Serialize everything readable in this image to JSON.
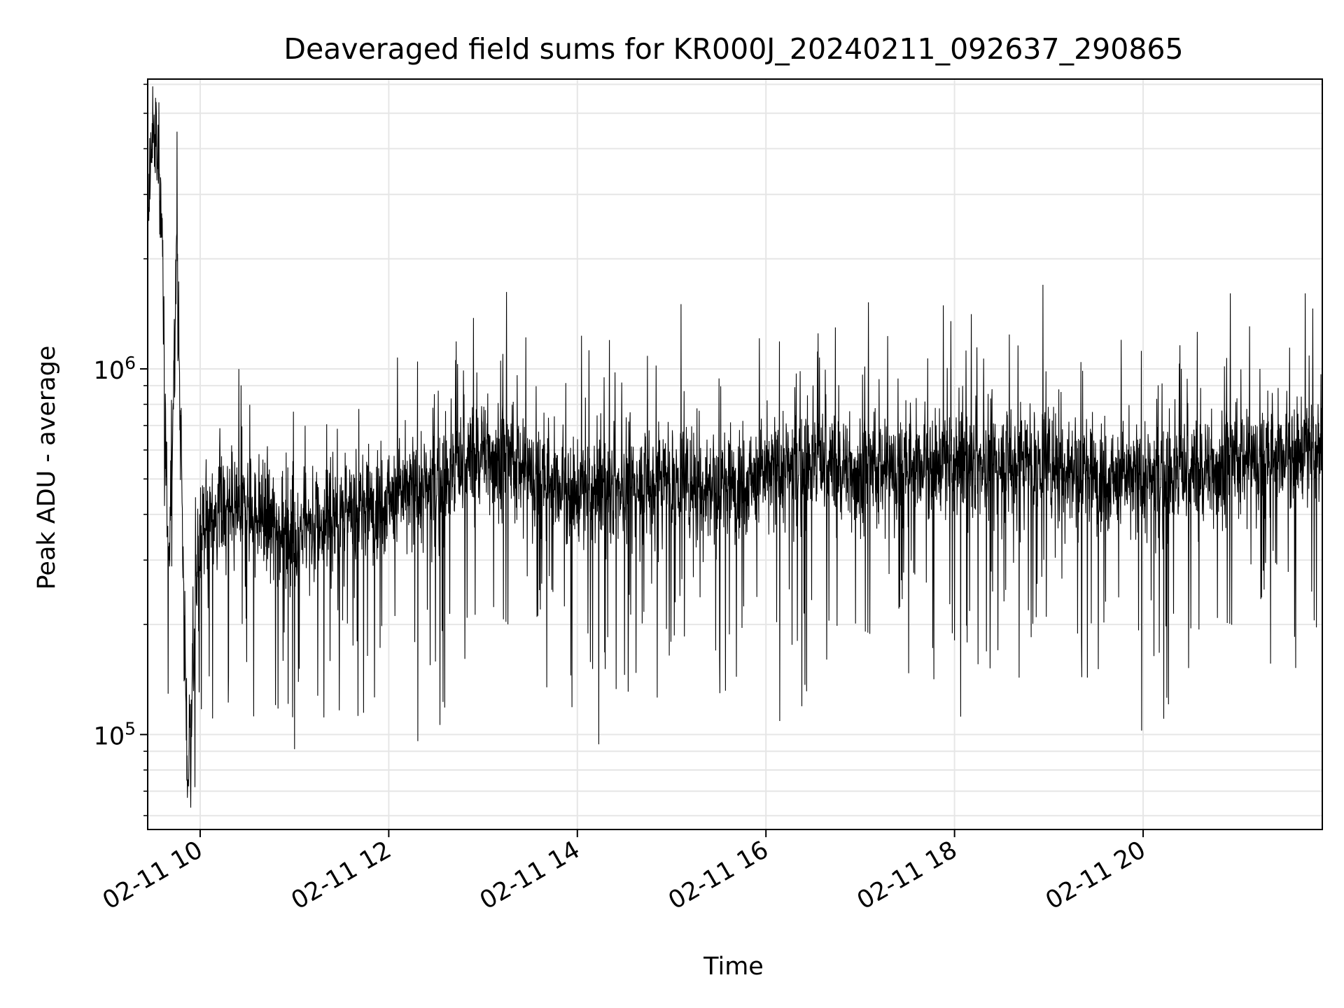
{
  "chart_data": {
    "type": "line",
    "title": "Deaveraged field sums for KR000J_20240211_092637_290865",
    "xlabel": "Time",
    "ylabel": "Peak ADU - average",
    "x_range": [
      "2024-02-11 09:26:37",
      "2024-02-11 21:54:00"
    ],
    "x_ticks": [
      {
        "label": "02-11 10",
        "time": "2024-02-11 10:00"
      },
      {
        "label": "02-11 12",
        "time": "2024-02-11 12:00"
      },
      {
        "label": "02-11 14",
        "time": "2024-02-11 14:00"
      },
      {
        "label": "02-11 16",
        "time": "2024-02-11 16:00"
      },
      {
        "label": "02-11 18",
        "time": "2024-02-11 18:00"
      },
      {
        "label": "02-11 20",
        "time": "2024-02-11 20:00"
      }
    ],
    "y_scale": "log",
    "ylim": [
      55000,
      6200000
    ],
    "y_ticks": [
      {
        "label": "10",
        "exponent": "5",
        "value": 100000
      },
      {
        "label": "10",
        "exponent": "6",
        "value": 1000000
      }
    ],
    "grid": true,
    "line_color": "#000000",
    "series": [
      {
        "x": [
          "2024-02-11 09:26:37",
          "2024-02-11 09:30",
          "2024-02-11 09:35",
          "2024-02-11 09:40",
          "2024-02-11 09:45",
          "2024-02-11 09:52",
          "2024-02-11 10:00",
          "2024-02-11 10:30",
          "2024-02-11 11:00",
          "2024-02-11 11:30",
          "2024-02-11 12:00",
          "2024-02-11 12:30",
          "2024-02-11 13:00",
          "2024-02-11 13:30",
          "2024-02-11 14:00",
          "2024-02-11 14:30",
          "2024-02-11 15:00",
          "2024-02-11 15:30",
          "2024-02-11 16:00",
          "2024-02-11 16:30",
          "2024-02-11 17:00",
          "2024-02-11 17:30",
          "2024-02-11 18:00",
          "2024-02-11 18:30",
          "2024-02-11 19:00",
          "2024-02-11 19:30",
          "2024-02-11 20:00",
          "2024-02-11 20:30",
          "2024-02-11 21:00",
          "2024-02-11 21:30",
          "2024-02-11 21:54"
        ],
        "y": [
          2300000,
          4700000,
          3200000,
          250000,
          2300000,
          73000,
          380000,
          420000,
          350000,
          400000,
          450000,
          480000,
          600000,
          520000,
          450000,
          480000,
          500000,
          480000,
          520000,
          560000,
          520000,
          540000,
          550000,
          560000,
          560000,
          520000,
          500000,
          520000,
          560000,
          580000,
          600000
        ]
      }
    ]
  }
}
